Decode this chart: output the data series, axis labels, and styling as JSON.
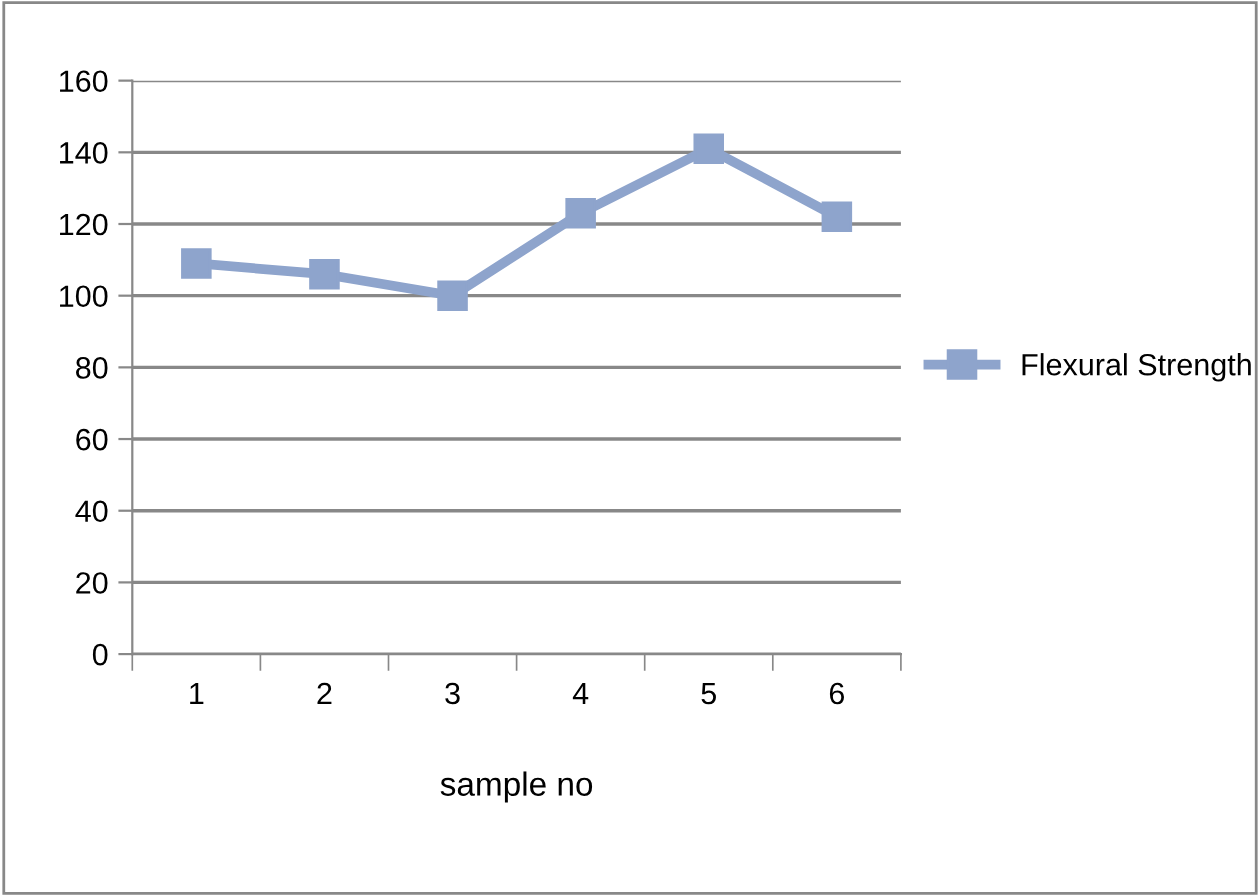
{
  "chart_data": {
    "type": "line",
    "xlabel": "sample no",
    "categories": [
      "1",
      "2",
      "3",
      "4",
      "5",
      "6"
    ],
    "series": [
      {
        "name": "Flexural Strength",
        "color": "#8ea4cc",
        "values": [
          109,
          106,
          100,
          123,
          141,
          122
        ]
      }
    ],
    "ylim": [
      0,
      160
    ],
    "yticks": [
      0,
      20,
      40,
      60,
      80,
      100,
      120,
      140,
      160
    ],
    "grid": "y",
    "legend": "right",
    "marker": "square",
    "line_style": "solid"
  }
}
